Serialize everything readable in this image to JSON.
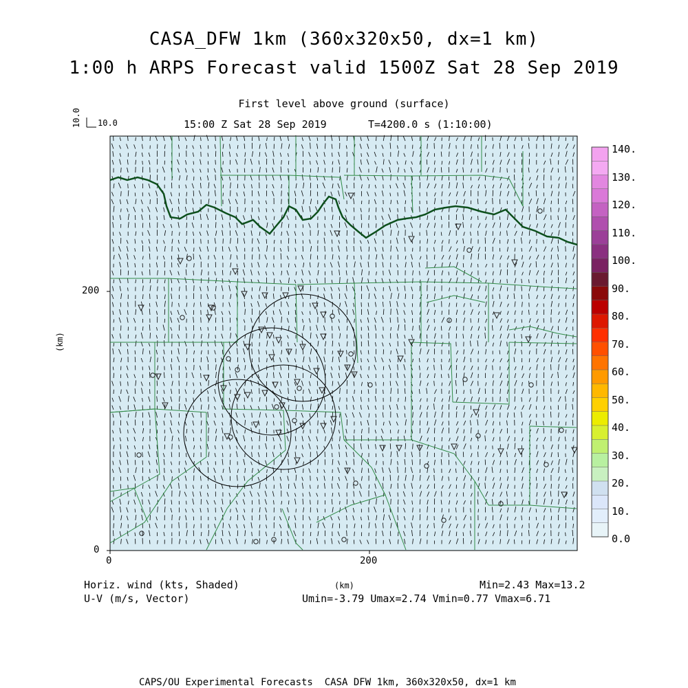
{
  "header": {
    "title_line1": "CASA_DFW 1km (360x320x50, dx=1 km)",
    "title_line2": "1:00 h ARPS Forecast valid 1500Z Sat 28 Sep 2019",
    "level": "First level above ground (surface)",
    "valid_time": "15:00 Z Sat 28 Sep 2019",
    "model_time": "T=4200.0 s (1:10:00)"
  },
  "reference_vector": {
    "vertical_label": "10.0",
    "horizontal_label": "10.0"
  },
  "axes": {
    "x_ticks": [
      "0",
      "200"
    ],
    "y_ticks": [
      "0",
      "200"
    ],
    "x_unit": "(km)",
    "y_unit": "(km)"
  },
  "colorbar": {
    "labels": [
      "140.",
      "130.",
      "120.",
      "110.",
      "100.",
      "90.",
      "80.",
      "70.",
      "60.",
      "50.",
      "40.",
      "30.",
      "20.",
      "10.",
      "0.0"
    ],
    "colors": [
      "#f3a2ef",
      "#f4a9f2",
      "#e287e0",
      "#da79d8",
      "#c462c2",
      "#b04fae",
      "#9b3f98",
      "#8a3080",
      "#7a2262",
      "#6a1a30",
      "#8a0a0a",
      "#bb0000",
      "#dd1800",
      "#ff3000",
      "#ff5000",
      "#ff7400",
      "#ff9a00",
      "#ffb800",
      "#ffd000",
      "#ecec00",
      "#d8f030",
      "#c0f070",
      "#b8f0a0",
      "#c8f0c0",
      "#d0e0f0",
      "#dbe6fa",
      "#e2eefb",
      "#e8f4f8"
    ]
  },
  "stats": {
    "field_label": "Horiz. wind (kts, Shaded)",
    "vector_label": "U-V (m/s, Vector)",
    "unit_label": "(km)",
    "minmax": "Min=2.43 Max=13.2",
    "uv_minmax": "Umin=-3.79 Umax=2.74 Vmin=0.77 Vmax=6.71"
  },
  "footer": {
    "text": "CAPS/OU Experimental Forecasts  CASA DFW 1km, 360x320x50, dx=1 km"
  },
  "map": {
    "background_color": "#d6ebf3",
    "border_color": "#1f7a35",
    "river_color": "#0b4a1a",
    "radar_rings": 4
  }
}
